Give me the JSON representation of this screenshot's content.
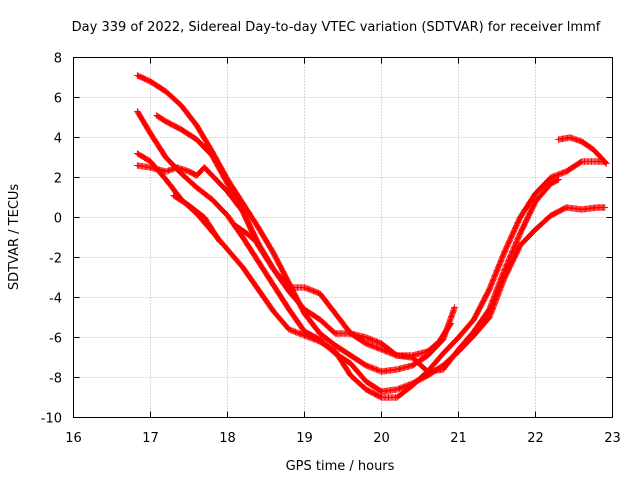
{
  "chart_data": {
    "type": "scatter",
    "title": "Day 339 of 2022, Sidereal Day-to-day VTEC variation (SDTVAR) for receiver lmmf",
    "xlabel": "GPS time / hours",
    "ylabel": "SDTVAR / TECUs",
    "xlim": [
      16,
      23
    ],
    "ylim": [
      -10,
      8
    ],
    "xticks": [
      "16",
      "17",
      "18",
      "19",
      "20",
      "21",
      "22",
      "23"
    ],
    "yticks": [
      "-10",
      "-8",
      "-6",
      "-4",
      "-2",
      "0",
      "2",
      "4",
      "6",
      "8"
    ],
    "grid": true,
    "marker": "plus",
    "color": "#ff0000",
    "series": [
      {
        "name": "series-1",
        "points": [
          [
            16.83,
            7.1
          ],
          [
            17.0,
            6.8
          ],
          [
            17.2,
            6.3
          ],
          [
            17.4,
            5.6
          ],
          [
            17.6,
            4.6
          ],
          [
            17.8,
            3.3
          ],
          [
            18.0,
            1.9
          ],
          [
            18.2,
            0.7
          ],
          [
            18.4,
            -0.5
          ],
          [
            18.6,
            -1.8
          ],
          [
            18.8,
            -3.3
          ],
          [
            19.0,
            -4.8
          ],
          [
            19.2,
            -5.8
          ],
          [
            19.4,
            -6.4
          ],
          [
            19.6,
            -6.9
          ],
          [
            19.8,
            -7.4
          ],
          [
            20.0,
            -7.7
          ],
          [
            20.2,
            -7.6
          ],
          [
            20.4,
            -7.4
          ],
          [
            20.6,
            -6.9
          ],
          [
            20.8,
            -6.1
          ],
          [
            20.95,
            -4.5
          ]
        ]
      },
      {
        "name": "series-2",
        "points": [
          [
            16.83,
            5.3
          ],
          [
            17.0,
            4.2
          ],
          [
            17.2,
            3.0
          ],
          [
            17.4,
            2.2
          ],
          [
            17.6,
            1.5
          ],
          [
            17.8,
            0.9
          ],
          [
            18.0,
            0.1
          ],
          [
            18.2,
            -1.0
          ],
          [
            18.4,
            -2.2
          ],
          [
            18.6,
            -3.4
          ],
          [
            18.8,
            -4.6
          ],
          [
            19.0,
            -5.7
          ],
          [
            19.2,
            -6.1
          ],
          [
            19.4,
            -6.8
          ],
          [
            19.6,
            -7.3
          ],
          [
            19.8,
            -8.2
          ],
          [
            20.0,
            -8.7
          ],
          [
            20.2,
            -8.6
          ],
          [
            20.4,
            -8.3
          ],
          [
            20.6,
            -7.9
          ],
          [
            20.8,
            -7.4
          ],
          [
            21.0,
            -6.7
          ],
          [
            21.2,
            -5.9
          ],
          [
            21.4,
            -5.0
          ],
          [
            21.6,
            -3.0
          ],
          [
            21.8,
            -1.4
          ],
          [
            22.0,
            -0.6
          ],
          [
            22.2,
            0.1
          ],
          [
            22.4,
            0.5
          ],
          [
            22.6,
            0.4
          ],
          [
            22.8,
            0.5
          ],
          [
            22.9,
            0.5
          ]
        ]
      },
      {
        "name": "series-3",
        "points": [
          [
            16.83,
            3.2
          ],
          [
            17.0,
            2.8
          ],
          [
            17.2,
            1.9
          ],
          [
            17.4,
            0.9
          ],
          [
            17.6,
            0.2
          ],
          [
            17.8,
            -0.7
          ],
          [
            18.0,
            -1.6
          ],
          [
            18.2,
            -2.5
          ],
          [
            18.4,
            -3.6
          ],
          [
            18.6,
            -4.7
          ],
          [
            18.8,
            -5.6
          ],
          [
            19.0,
            -5.9
          ],
          [
            19.2,
            -6.2
          ],
          [
            19.4,
            -6.7
          ],
          [
            19.6,
            -7.9
          ],
          [
            19.8,
            -8.6
          ],
          [
            20.0,
            -9.0
          ],
          [
            20.2,
            -9.0
          ],
          [
            20.4,
            -8.4
          ],
          [
            20.6,
            -7.7
          ],
          [
            20.8,
            -6.8
          ],
          [
            21.0,
            -6.0
          ],
          [
            21.2,
            -5.1
          ],
          [
            21.4,
            -3.6
          ],
          [
            21.6,
            -1.7
          ],
          [
            21.8,
            0.0
          ],
          [
            22.0,
            1.2
          ],
          [
            22.2,
            2.0
          ],
          [
            22.4,
            2.3
          ],
          [
            22.6,
            2.8
          ],
          [
            22.8,
            2.8
          ],
          [
            22.9,
            2.8
          ]
        ]
      },
      {
        "name": "series-4",
        "points": [
          [
            16.83,
            2.6
          ],
          [
            17.0,
            2.5
          ],
          [
            17.2,
            2.3
          ],
          [
            17.35,
            2.5
          ],
          [
            17.5,
            2.3
          ],
          [
            17.6,
            2.1
          ],
          [
            17.7,
            2.5
          ],
          [
            17.8,
            2.1
          ],
          [
            18.0,
            1.3
          ],
          [
            18.2,
            0.3
          ],
          [
            18.4,
            -1.4
          ],
          [
            18.6,
            -2.6
          ],
          [
            18.8,
            -3.5
          ],
          [
            19.0,
            -3.5
          ],
          [
            19.2,
            -3.8
          ],
          [
            19.4,
            -4.8
          ],
          [
            19.6,
            -5.8
          ],
          [
            19.8,
            -6.0
          ],
          [
            20.0,
            -6.3
          ],
          [
            20.2,
            -6.9
          ],
          [
            20.4,
            -7.0
          ],
          [
            20.6,
            -7.7
          ],
          [
            20.8,
            -7.6
          ],
          [
            21.0,
            -6.6
          ],
          [
            21.2,
            -5.7
          ],
          [
            21.4,
            -4.6
          ],
          [
            21.6,
            -2.6
          ],
          [
            21.8,
            -0.8
          ],
          [
            22.0,
            0.8
          ],
          [
            22.2,
            1.7
          ],
          [
            22.3,
            1.9
          ]
        ]
      },
      {
        "name": "series-5",
        "points": [
          [
            17.08,
            5.1
          ],
          [
            17.2,
            4.8
          ],
          [
            17.4,
            4.4
          ],
          [
            17.6,
            3.9
          ],
          [
            17.8,
            3.1
          ],
          [
            18.0,
            1.7
          ],
          [
            18.2,
            0.3
          ],
          [
            18.4,
            -1.3
          ],
          [
            18.6,
            -2.6
          ],
          [
            18.8,
            -3.7
          ],
          [
            19.0,
            -4.6
          ],
          [
            19.2,
            -5.1
          ],
          [
            19.4,
            -5.8
          ],
          [
            19.6,
            -5.8
          ],
          [
            19.8,
            -6.3
          ],
          [
            20.0,
            -6.6
          ],
          [
            20.2,
            -6.9
          ],
          [
            20.4,
            -6.9
          ],
          [
            20.6,
            -6.7
          ],
          [
            20.75,
            -6.2
          ],
          [
            20.9,
            -5.3
          ]
        ]
      },
      {
        "name": "series-6",
        "points": [
          [
            22.3,
            3.9
          ],
          [
            22.45,
            4.0
          ],
          [
            22.6,
            3.8
          ],
          [
            22.75,
            3.4
          ],
          [
            22.85,
            3.0
          ],
          [
            22.92,
            2.7
          ]
        ]
      },
      {
        "name": "series-7",
        "points": [
          [
            17.3,
            1.1
          ],
          [
            17.5,
            0.6
          ],
          [
            17.7,
            0.0
          ],
          [
            17.9,
            -1.2
          ]
        ]
      },
      {
        "name": "series-8",
        "points": [
          [
            18.1,
            -0.4
          ],
          [
            18.25,
            -0.8
          ],
          [
            18.4,
            -1.3
          ]
        ]
      }
    ]
  }
}
